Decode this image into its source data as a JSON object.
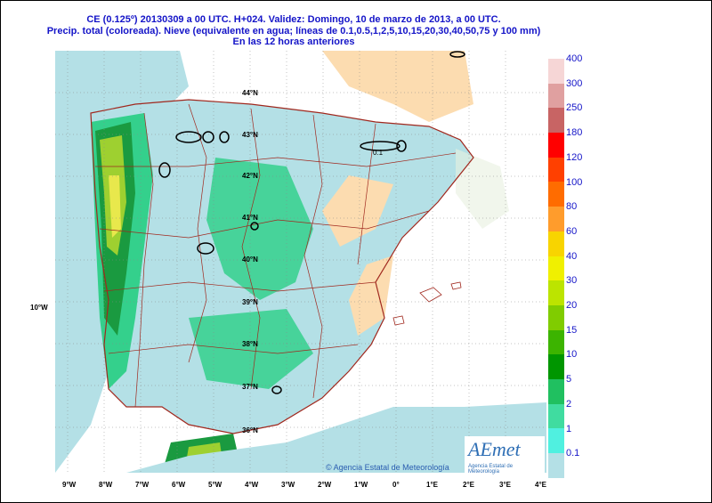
{
  "header": {
    "line1": "CE (0.125º) 20130309 a 00 UTC.  H+024.  Validez: Domingo, 10 de marzo de 2013,  a  00 UTC.",
    "line2": "Precip. total (coloreada). Nieve (equivalente en agua; líneas de 0.1,0.5,1,2,5,10,15,20,30,40,50,75 y 100 mm)",
    "line3": "En las 12 horas anteriores"
  },
  "map": {
    "lat_labels": [
      "44°N",
      "43°N",
      "42°N",
      "41°N",
      "40°N",
      "39°N",
      "38°N",
      "37°N",
      "36°N"
    ],
    "side_label": "10°W",
    "lon_labels": [
      "9°W",
      "8°W",
      "7°W",
      "6°W",
      "5°W",
      "4°W",
      "3°W",
      "2°W",
      "1°W",
      "0°",
      "1°E",
      "2°E",
      "3°E",
      "4°E"
    ],
    "snow_label": "0.1",
    "credit": "© Agencia Estatal de Meteorología",
    "logo_text": "AEmet",
    "logo_sub": "Agencia Estatal de Meteorología",
    "colors": {
      "sea": "#ffffff",
      "dry": "#fcdcb0",
      "light": "#b4e0e6",
      "mid": "#34d08c",
      "dark": "#1a9a40",
      "heavy": "#9ed030",
      "peak": "#e8e84c",
      "snow": "#000000",
      "border": "#a0281e"
    }
  },
  "legend": {
    "items": [
      {
        "label": "400",
        "color": "#f6d6d6"
      },
      {
        "label": "300",
        "color": "#e0a0a0"
      },
      {
        "label": "250",
        "color": "#c86464"
      },
      {
        "label": "180",
        "color": "#ff0000"
      },
      {
        "label": "120",
        "color": "#ff4000"
      },
      {
        "label": "100",
        "color": "#ff6c00"
      },
      {
        "label": "80",
        "color": "#ff9c2c"
      },
      {
        "label": "60",
        "color": "#f8d400"
      },
      {
        "label": "40",
        "color": "#f0f000"
      },
      {
        "label": "30",
        "color": "#bce400"
      },
      {
        "label": "20",
        "color": "#80cc00"
      },
      {
        "label": "15",
        "color": "#3cb400"
      },
      {
        "label": "10",
        "color": "#009600"
      },
      {
        "label": "5",
        "color": "#20c060"
      },
      {
        "label": "2",
        "color": "#40dca0"
      },
      {
        "label": "1",
        "color": "#50f0e0"
      },
      {
        "label": "0.1",
        "color": "#b4e0e6"
      }
    ]
  }
}
